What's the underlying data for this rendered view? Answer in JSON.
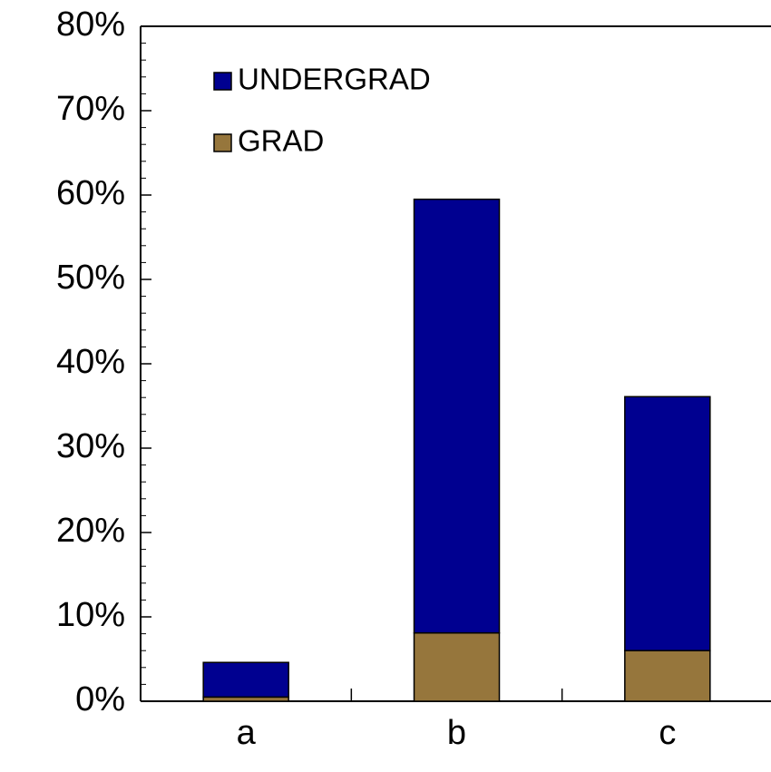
{
  "chart_data": {
    "type": "stacked_bar",
    "categories": [
      "a",
      "b",
      "c"
    ],
    "series": [
      {
        "name": "UNDERGRAD",
        "color": "#000090",
        "values": [
          4.1,
          51.4,
          30.1
        ]
      },
      {
        "name": "GRAD",
        "color": "#96763c",
        "values": [
          0.5,
          8.1,
          6.0
        ]
      }
    ],
    "ylim": [
      0,
      80
    ],
    "yticks": [
      {
        "value": 0,
        "label": "0%"
      },
      {
        "value": 10,
        "label": "10%"
      },
      {
        "value": 20,
        "label": "20%"
      },
      {
        "value": 30,
        "label": "30%"
      },
      {
        "value": 40,
        "label": "40%"
      },
      {
        "value": 50,
        "label": "50%"
      },
      {
        "value": 60,
        "label": "60%"
      },
      {
        "value": 70,
        "label": "70%"
      },
      {
        "value": 80,
        "label": "80%"
      }
    ],
    "legend": "upper left"
  }
}
